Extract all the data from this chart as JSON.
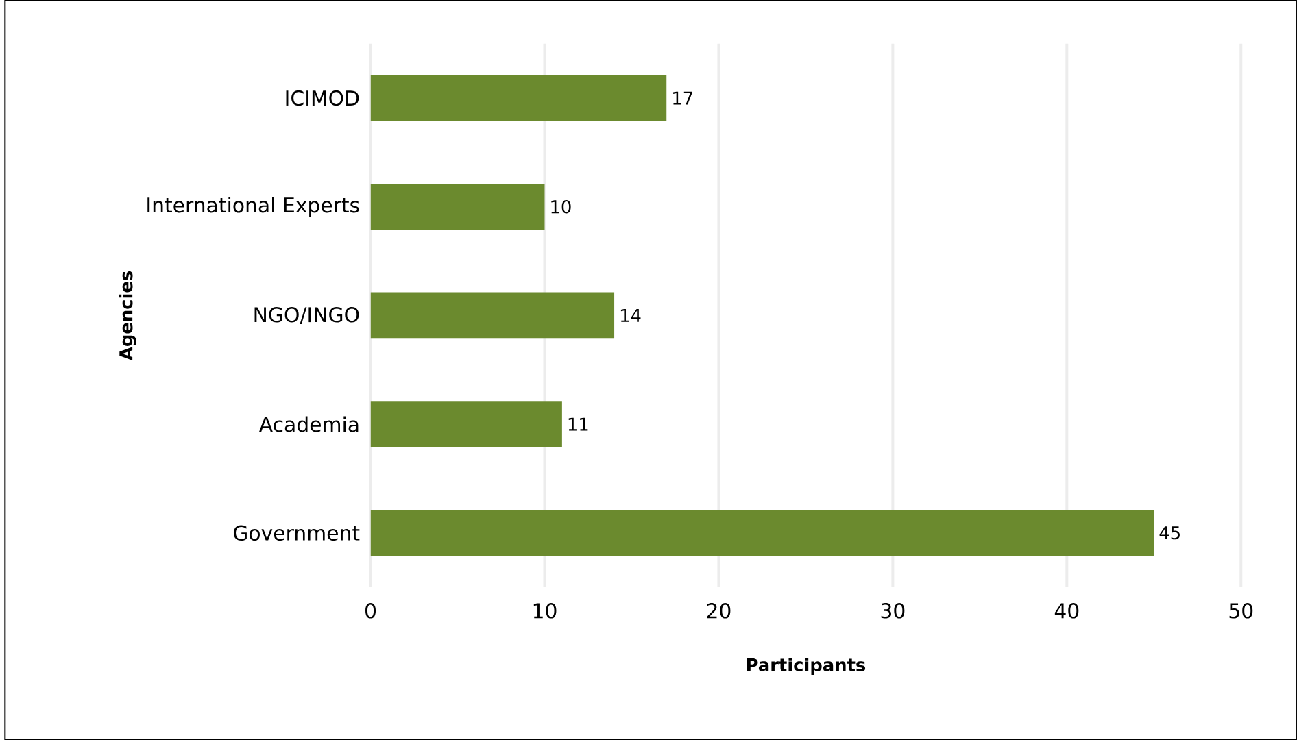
{
  "chart_data": {
    "type": "bar",
    "orientation": "horizontal",
    "xlabel": "Participants",
    "ylabel": "Agencies",
    "categories": [
      "ICIMOD",
      "International Experts",
      "NGO/INGO",
      "Academia",
      "Government"
    ],
    "values": [
      17,
      10,
      14,
      11,
      45
    ],
    "color": "#6b8a2e",
    "data_labels": true,
    "xlim": [
      0,
      50
    ],
    "xticks": [
      0,
      10,
      20,
      30,
      40,
      50
    ],
    "grid": "x"
  }
}
